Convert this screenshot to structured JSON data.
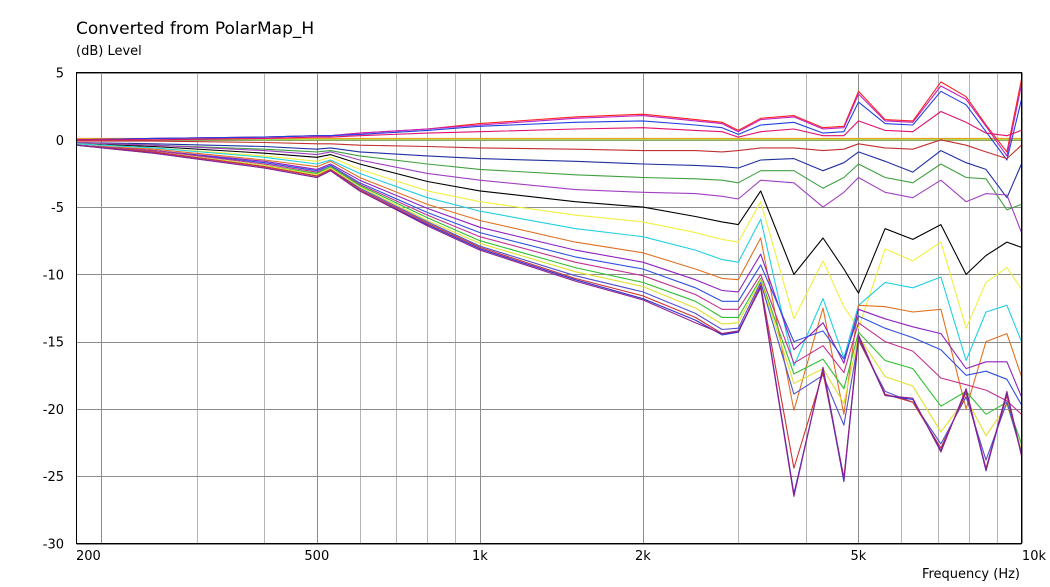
{
  "chart_data": {
    "type": "line",
    "title": "Converted from PolarMap_H",
    "ylabel": "(dB)  Level",
    "xlabel": "Frequency  (Hz)",
    "x_scale": "log",
    "xlim": [
      180,
      10000
    ],
    "ylim": [
      -30,
      5
    ],
    "x_ticks": [
      {
        "value": 200,
        "label": "200"
      },
      {
        "value": 500,
        "label": "500"
      },
      {
        "value": 1000,
        "label": "1k"
      },
      {
        "value": 2000,
        "label": "2k"
      },
      {
        "value": 5000,
        "label": "5k"
      },
      {
        "value": 10000,
        "label": "10k"
      }
    ],
    "y_ticks": [
      {
        "value": 5,
        "label": "5"
      },
      {
        "value": 0,
        "label": "0"
      },
      {
        "value": -5,
        "label": "-5"
      },
      {
        "value": -10,
        "label": "-10"
      },
      {
        "value": -15,
        "label": "-15"
      },
      {
        "value": -20,
        "label": "-20"
      },
      {
        "value": -25,
        "label": "-25"
      },
      {
        "value": -30,
        "label": "-30"
      }
    ],
    "grid": true,
    "x": [
      180,
      250,
      400,
      500,
      530,
      600,
      800,
      1000,
      1500,
      2000,
      2500,
      2800,
      3000,
      3300,
      3800,
      4300,
      4700,
      5000,
      5600,
      6300,
      7100,
      7900,
      8600,
      9400,
      10000
    ],
    "series": [
      {
        "color": "#e8a020",
        "values": [
          0.1,
          0.1,
          0.1,
          0.1,
          0.1,
          0.1,
          0.1,
          0.1,
          0.1,
          0.1,
          0.1,
          0.1,
          0.1,
          0.1,
          0.1,
          0.1,
          0.1,
          0.1,
          0.1,
          0.1,
          0.1,
          0.1,
          0.1,
          0.1,
          0.1
        ]
      },
      {
        "color": "#90d020",
        "values": [
          0,
          0,
          0,
          0,
          0,
          0,
          0,
          0,
          0,
          0,
          0,
          0,
          0,
          0,
          0,
          0,
          0,
          0,
          0,
          0,
          0,
          0,
          0,
          0,
          0
        ]
      },
      {
        "color": "#ff2020",
        "values": [
          0,
          0.1,
          0.2,
          0.3,
          0.3,
          0.5,
          0.8,
          1.2,
          1.7,
          1.9,
          1.5,
          1.3,
          0.7,
          1.6,
          1.8,
          0.9,
          1.0,
          3.6,
          1.5,
          1.4,
          4.3,
          3.2,
          1.1,
          -0.9,
          4.5
        ]
      },
      {
        "color": "#c020c0",
        "values": [
          0,
          0.1,
          0.2,
          0.3,
          0.3,
          0.5,
          0.8,
          1.1,
          1.6,
          1.8,
          1.4,
          1.2,
          0.6,
          1.5,
          1.7,
          0.8,
          0.9,
          3.4,
          1.4,
          1.3,
          4.0,
          3.0,
          1.0,
          -1.2,
          4.1
        ]
      },
      {
        "color": "#2040e0",
        "values": [
          0,
          0.1,
          0.2,
          0.3,
          0.3,
          0.4,
          0.7,
          1.0,
          1.3,
          1.4,
          1.1,
          0.9,
          0.4,
          1.1,
          1.3,
          0.5,
          0.6,
          2.8,
          1.2,
          1.1,
          3.6,
          2.6,
          0.6,
          -1.5,
          3.0
        ]
      },
      {
        "color": "#e01070",
        "values": [
          0,
          0,
          0.1,
          0.2,
          0.2,
          0.3,
          0.5,
          0.6,
          0.8,
          0.9,
          0.7,
          0.6,
          0.2,
          0.6,
          0.8,
          0.3,
          0.3,
          1.4,
          0.7,
          0.6,
          2.1,
          1.3,
          0.5,
          0.3,
          0.7
        ]
      },
      {
        "color": "#c03030",
        "values": [
          -0.1,
          -0.1,
          -0.2,
          -0.3,
          -0.3,
          -0.4,
          -0.5,
          -0.6,
          -0.7,
          -0.8,
          -0.8,
          -0.9,
          -0.8,
          -0.6,
          -0.6,
          -0.8,
          -0.7,
          -0.3,
          -0.6,
          -0.7,
          0.0,
          -0.4,
          -0.9,
          -1.4,
          -0.4
        ]
      },
      {
        "color": "#2030a0",
        "values": [
          -0.2,
          -0.3,
          -0.5,
          -0.7,
          -0.6,
          -0.9,
          -1.2,
          -1.4,
          -1.6,
          -1.8,
          -1.9,
          -2.0,
          -2.1,
          -1.5,
          -1.4,
          -2.3,
          -1.7,
          -0.9,
          -1.6,
          -2.4,
          -0.8,
          -1.7,
          -2.2,
          -4.3,
          -1.8
        ]
      },
      {
        "color": "#40a040",
        "values": [
          -0.2,
          -0.4,
          -0.7,
          -0.9,
          -0.8,
          -1.2,
          -1.8,
          -2.2,
          -2.6,
          -2.8,
          -2.9,
          -3.0,
          -3.2,
          -2.3,
          -2.3,
          -3.6,
          -2.8,
          -1.8,
          -2.8,
          -3.2,
          -1.8,
          -2.8,
          -2.9,
          -5.2,
          -4.8
        ]
      },
      {
        "color": "#a040c0",
        "values": [
          -0.2,
          -0.4,
          -0.8,
          -1.1,
          -0.9,
          -1.5,
          -2.5,
          -3.0,
          -3.7,
          -3.9,
          -4.0,
          -4.2,
          -4.4,
          -3.0,
          -3.2,
          -5.0,
          -3.9,
          -2.8,
          -3.9,
          -4.3,
          -3.0,
          -4.6,
          -4.0,
          -4.1,
          -6.9
        ]
      },
      {
        "color": "#000000",
        "values": [
          -0.3,
          -0.5,
          -1.0,
          -1.3,
          -1.1,
          -1.8,
          -3.1,
          -3.8,
          -4.6,
          -5.0,
          -5.7,
          -6.1,
          -6.3,
          -3.8,
          -10.0,
          -7.3,
          -9.6,
          -11.4,
          -6.6,
          -7.4,
          -6.3,
          -10.0,
          -8.6,
          -7.6,
          -8.0
        ]
      },
      {
        "color": "#f0f040",
        "values": [
          -0.3,
          -0.6,
          -1.2,
          -1.6,
          -1.3,
          -2.2,
          -3.8,
          -4.6,
          -5.6,
          -6.1,
          -6.9,
          -7.4,
          -7.6,
          -4.6,
          -13.3,
          -9.0,
          -12.4,
          -14.0,
          -8.1,
          -9.0,
          -7.6,
          -14.0,
          -10.6,
          -9.5,
          -11.1
        ]
      },
      {
        "color": "#20d0e0",
        "values": [
          -0.3,
          -0.6,
          -1.3,
          -1.8,
          -1.5,
          -2.5,
          -4.3,
          -5.3,
          -6.6,
          -7.2,
          -8.2,
          -8.9,
          -9.1,
          -5.9,
          -16.8,
          -11.8,
          -16.2,
          -12.3,
          -10.6,
          -11.0,
          -10.2,
          -16.4,
          -12.8,
          -12.3,
          -15.0
        ]
      },
      {
        "color": "#e07020",
        "values": [
          -0.4,
          -0.7,
          -1.5,
          -2.0,
          -1.6,
          -2.8,
          -4.8,
          -6.0,
          -7.6,
          -8.4,
          -9.6,
          -10.3,
          -10.4,
          -7.3,
          -20.1,
          -12.5,
          -20.4,
          -12.3,
          -12.4,
          -12.8,
          -12.6,
          -20.0,
          -15.0,
          -14.4,
          -17.6
        ]
      },
      {
        "color": "#9020c0",
        "values": [
          -0.4,
          -0.8,
          -1.6,
          -2.2,
          -1.8,
          -3.0,
          -5.1,
          -6.5,
          -8.2,
          -9.1,
          -10.4,
          -11.2,
          -11.3,
          -8.5,
          -15.6,
          -13.6,
          -16.6,
          -12.6,
          -13.3,
          -13.9,
          -14.4,
          -17.0,
          -16.5,
          -16.5,
          -19.1
        ]
      },
      {
        "color": "#3050e0",
        "values": [
          -0.4,
          -0.8,
          -1.7,
          -2.3,
          -1.9,
          -3.2,
          -5.4,
          -6.9,
          -8.7,
          -9.6,
          -11.0,
          -12.0,
          -12.0,
          -9.3,
          -15.0,
          -14.2,
          -16.3,
          -13.1,
          -14.0,
          -14.7,
          -15.6,
          -17.5,
          -17.2,
          -17.8,
          -19.7
        ]
      },
      {
        "color": "#c03090",
        "values": [
          -0.4,
          -0.8,
          -1.8,
          -2.4,
          -2.0,
          -3.3,
          -5.6,
          -7.2,
          -9.1,
          -10.1,
          -11.5,
          -12.6,
          -12.6,
          -10.0,
          -16.6,
          -15.3,
          -17.3,
          -13.6,
          -15.0,
          -15.7,
          -17.7,
          -18.2,
          -18.6,
          -19.4,
          -20.4
        ]
      },
      {
        "color": "#30c030",
        "values": [
          -0.4,
          -0.9,
          -1.9,
          -2.5,
          -2.0,
          -3.4,
          -5.8,
          -7.5,
          -9.5,
          -10.6,
          -12.0,
          -13.2,
          -13.2,
          -10.3,
          -17.4,
          -16.3,
          -18.5,
          -14.3,
          -16.4,
          -17.0,
          -19.8,
          -18.7,
          -20.4,
          -19.5,
          -22.6
        ]
      },
      {
        "color": "#e0e030",
        "values": [
          -0.4,
          -0.9,
          -1.9,
          -2.6,
          -2.1,
          -3.5,
          -6.0,
          -7.7,
          -9.8,
          -10.9,
          -12.5,
          -13.7,
          -13.6,
          -10.4,
          -18.1,
          -17.0,
          -19.6,
          -14.6,
          -17.6,
          -18.3,
          -21.7,
          -19.2,
          -22.0,
          -19.7,
          -23.0
        ]
      },
      {
        "color": "#5050d0",
        "values": [
          -0.4,
          -0.9,
          -2.0,
          -2.7,
          -2.2,
          -3.6,
          -6.1,
          -7.9,
          -10.1,
          -11.3,
          -12.9,
          -14.1,
          -14.0,
          -10.6,
          -18.9,
          -17.5,
          -21.2,
          -14.9,
          -18.7,
          -19.5,
          -22.6,
          -19.1,
          -23.8,
          -19.5,
          -23.3
        ]
      },
      {
        "color": "#d03030",
        "values": [
          -0.4,
          -0.9,
          -2.0,
          -2.7,
          -2.2,
          -3.7,
          -6.2,
          -8.0,
          -10.3,
          -11.6,
          -13.2,
          -14.4,
          -14.3,
          -10.8,
          -24.4,
          -17.3,
          -25.1,
          -14.8,
          -18.9,
          -19.5,
          -22.9,
          -18.8,
          -24.4,
          -19.0,
          -23.4
        ]
      },
      {
        "color": "#3030d0",
        "values": [
          -0.4,
          -1.0,
          -2.1,
          -2.8,
          -2.3,
          -3.8,
          -6.3,
          -8.1,
          -10.4,
          -11.8,
          -13.4,
          -14.5,
          -14.3,
          -10.9,
          -26.3,
          -17.0,
          -25.4,
          -14.6,
          -19.0,
          -19.3,
          -23.1,
          -18.6,
          -24.6,
          -18.8,
          -23.4
        ]
      },
      {
        "color": "#902090",
        "values": [
          -0.4,
          -1.0,
          -2.1,
          -2.8,
          -2.3,
          -3.8,
          -6.4,
          -8.2,
          -10.5,
          -11.9,
          -13.6,
          -14.4,
          -14.2,
          -11.0,
          -26.5,
          -16.9,
          -25.2,
          -14.5,
          -19.0,
          -19.2,
          -23.2,
          -18.5,
          -24.5,
          -18.7,
          -23.5
        ]
      }
    ]
  }
}
